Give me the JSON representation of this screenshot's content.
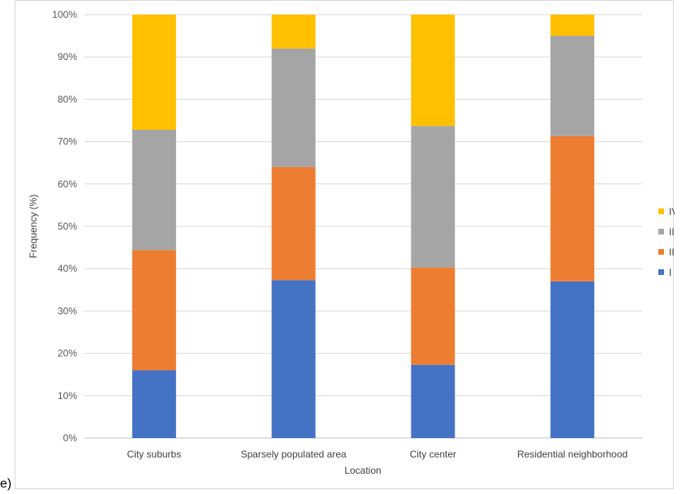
{
  "panel_label": "e)",
  "chart_data": {
    "type": "bar",
    "stacked": true,
    "percent": true,
    "categories": [
      "City suburbs",
      "Sparsely populated area",
      "City center",
      "Residential neighborhood"
    ],
    "series": [
      {
        "name": "I",
        "color": "#4472c4",
        "values": [
          16.0,
          37.3,
          17.3,
          37.0
        ]
      },
      {
        "name": "II",
        "color": "#ed7d31",
        "values": [
          28.4,
          26.7,
          23.0,
          34.3
        ]
      },
      {
        "name": "III",
        "color": "#a5a5a5",
        "values": [
          28.4,
          28.0,
          33.4,
          23.7
        ]
      },
      {
        "name": "IV",
        "color": "#ffc000",
        "values": [
          27.2,
          8.0,
          26.3,
          5.0
        ]
      }
    ],
    "xlabel": "Location",
    "ylabel": "Frequency (%)",
    "ylim": [
      0,
      100
    ],
    "yticks": [
      "0%",
      "10%",
      "20%",
      "30%",
      "40%",
      "50%",
      "60%",
      "70%",
      "80%",
      "90%",
      "100%"
    ],
    "grid": true,
    "legend": "right"
  }
}
